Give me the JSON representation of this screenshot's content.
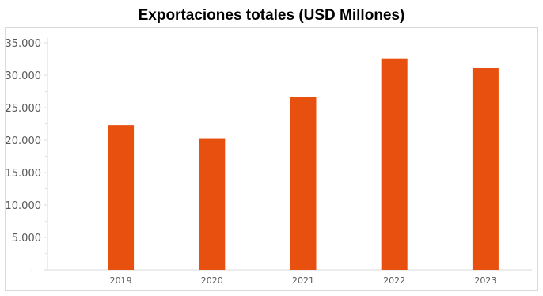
{
  "chart_data": {
    "type": "bar",
    "title": "Exportaciones totales (USD Millones)",
    "xlabel": "",
    "ylabel": "",
    "categories": [
      "2019",
      "2020",
      "2021",
      "2022",
      "2023"
    ],
    "values": [
      22300,
      20300,
      26600,
      32600,
      31100
    ],
    "ylim": [
      0,
      35000
    ],
    "yticks": [
      0,
      5000,
      10000,
      15000,
      20000,
      25000,
      30000,
      35000
    ],
    "ytick_labels": [
      "-",
      "5.000",
      "10.000",
      "15.000",
      "20.000",
      "25.000",
      "30.000",
      "35.000"
    ],
    "bar_color": "#E8500F",
    "grid": false,
    "legend": "none"
  }
}
